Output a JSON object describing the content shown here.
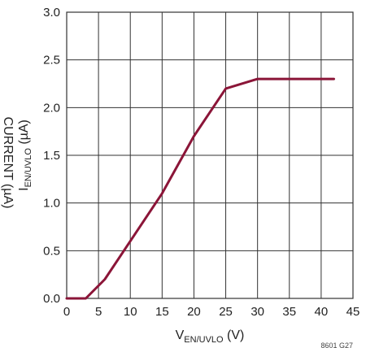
{
  "chart_data": {
    "type": "line",
    "xlabel": {
      "main": "V",
      "sub": "EN/UVLO",
      "unit": " (V)"
    },
    "ylabel": {
      "main": "I",
      "sub": "EN/UVLO",
      "unit": " (µA)"
    },
    "xlim": [
      0,
      45
    ],
    "ylim": [
      0,
      3.0
    ],
    "xticks": [
      "0",
      "5",
      "10",
      "15",
      "20",
      "25",
      "30",
      "35",
      "40",
      "45"
    ],
    "yticks": [
      "0.0",
      "0.5",
      "1.0",
      "1.5",
      "2.0",
      "2.5",
      "3.0"
    ],
    "grid": true,
    "series": [
      {
        "color": "#8b1538",
        "x": [
          0,
          3,
          6,
          10,
          15,
          20,
          25,
          30,
          35,
          42
        ],
        "y": [
          0.0,
          0.0,
          0.2,
          0.6,
          1.1,
          1.7,
          2.2,
          2.3,
          2.3,
          2.3
        ]
      }
    ],
    "cutoff_label": "CURRENT (µA)",
    "figure_code": "8601 G27"
  }
}
